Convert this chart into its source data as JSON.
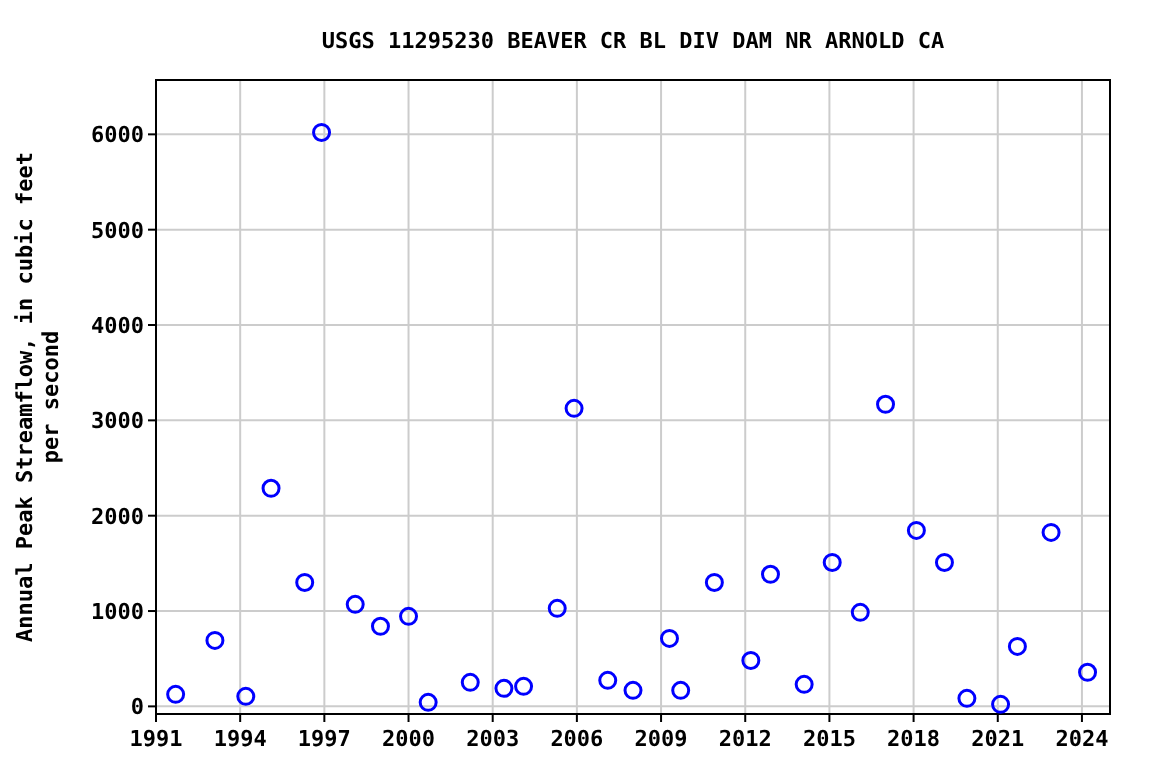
{
  "chart_data": {
    "type": "scatter",
    "title": "USGS 11295230 BEAVER CR BL DIV DAM NR ARNOLD CA",
    "ylabel": "Annual Peak Streamflow, in cubic feet\nper second",
    "x": [
      1991.7,
      1993.1,
      1994.2,
      1995.1,
      1996.3,
      1996.9,
      1998.1,
      1999.0,
      2000.0,
      2000.7,
      2002.2,
      2003.4,
      2004.1,
      2005.3,
      2005.9,
      2007.1,
      2008.0,
      2009.3,
      2009.7,
      2010.9,
      2012.2,
      2012.9,
      2014.1,
      2015.1,
      2016.1,
      2017.0,
      2018.1,
      2019.1,
      2019.9,
      2021.1,
      2021.7,
      2022.9,
      2024.2
    ],
    "values": [
      126,
      692,
      105,
      2287,
      1300,
      6020,
      1070,
      840,
      944,
      42,
      252,
      189,
      210,
      1028,
      3126,
      273,
      168,
      713,
      168,
      1300,
      482,
      1385,
      231,
      1510,
      986,
      3168,
      1846,
      1510,
      84,
      21,
      629,
      1825,
      357
    ],
    "color": "#0000ff",
    "marker": "circle",
    "grid": true,
    "xlim": [
      1991,
      2025
    ],
    "xticks": [
      1991,
      1994,
      1997,
      2000,
      2003,
      2006,
      2009,
      2012,
      2015,
      2018,
      2021,
      2024
    ],
    "ylim": [
      -80,
      6570
    ],
    "yticks": [
      0,
      1000,
      2000,
      3000,
      4000,
      5000,
      6000
    ]
  }
}
